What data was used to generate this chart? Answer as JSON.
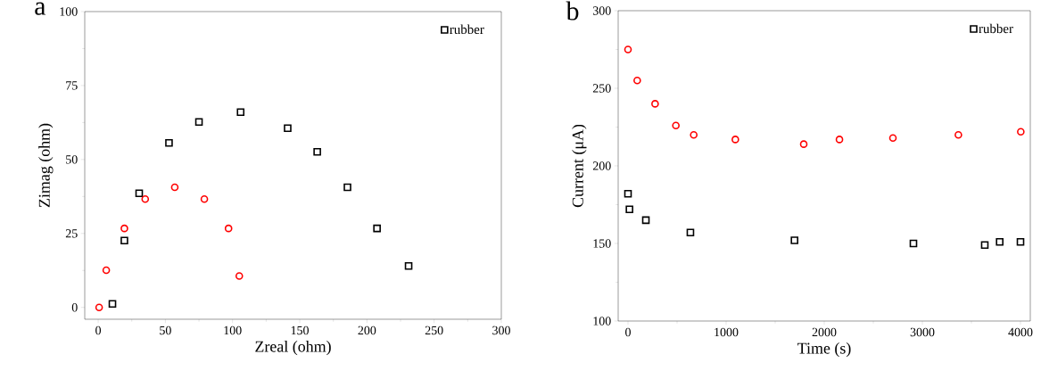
{
  "chart_data": [
    {
      "type": "scatter",
      "title": "a",
      "xlabel": "Zreal (ohm)",
      "ylabel": "Zimag (ohm)",
      "xlim": [
        -10,
        300
      ],
      "ylim": [
        -4,
        100
      ],
      "xticks": [
        0,
        50,
        100,
        150,
        200,
        250,
        300
      ],
      "yticks": [
        0,
        25,
        50,
        75,
        100
      ],
      "grid": false,
      "legend": "top right",
      "series": [
        {
          "name": "rubber",
          "color": "#000000",
          "marker": "square",
          "x": [
            10.6,
            19.5,
            30.5,
            52.7,
            75,
            106,
            141,
            163,
            185.5,
            207.5,
            231
          ],
          "values": [
            1.2,
            22.6,
            38.6,
            55.6,
            62.7,
            66,
            60.6,
            52.6,
            40.6,
            26.7,
            14
          ]
        },
        {
          "color": "#ff0000",
          "marker": "circle",
          "x": [
            0.7,
            6,
            19.5,
            35,
            57,
            79,
            97,
            105
          ],
          "values": [
            0,
            12.6,
            26.7,
            36.6,
            40.6,
            36.6,
            26.7,
            10.6
          ]
        }
      ]
    },
    {
      "type": "scatter",
      "title": "b",
      "xlabel": "Time (s)",
      "ylabel": "Current (μA)",
      "xlim": [
        -100,
        4100
      ],
      "ylim": [
        100,
        300
      ],
      "xticks": [
        0,
        1000,
        2000,
        3000,
        4000
      ],
      "yticks": [
        100,
        150,
        200,
        250,
        300
      ],
      "grid": false,
      "legend": "top right",
      "series": [
        {
          "name": "rubber",
          "color": "#000000",
          "marker": "square",
          "x": [
            0,
            15,
            182,
            636,
            1697,
            2909,
            3636,
            3788,
            4000
          ],
          "values": [
            182,
            172,
            165,
            157,
            152,
            150,
            149,
            151,
            151
          ]
        },
        {
          "color": "#ff0000",
          "marker": "circle",
          "x": [
            0,
            94,
            276,
            488,
            670,
            1094,
            1791,
            2155,
            2700,
            3367,
            4003
          ],
          "values": [
            275,
            255,
            240,
            226,
            220,
            217,
            214,
            217,
            218,
            220,
            222
          ]
        }
      ]
    }
  ]
}
